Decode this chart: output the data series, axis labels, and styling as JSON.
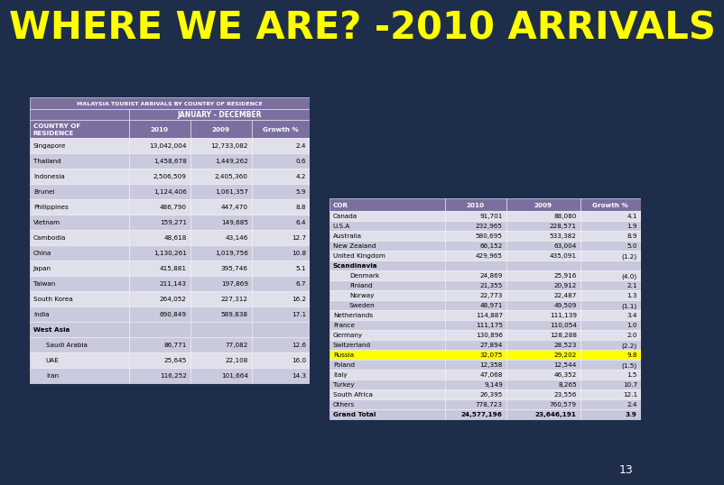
{
  "title": "WHERE WE ARE? -2010 ARRIVALS",
  "title_color": "#FFFF00",
  "bg_color": "#1e2d4a",
  "slide_number": "13",
  "table1_header_title": "MALAYSIA TOURIST ARRIVALS BY COUNTRY OF RESIDENCE",
  "table1_col_headers": [
    "COUNTRY OF\nRESIDENCE",
    "2010",
    "2009",
    "Growth %"
  ],
  "table1_subheader": "JANUARY - DECEMBER",
  "table1_rows": [
    [
      "Singapore",
      "13,042,004",
      "12,733,082",
      "2.4"
    ],
    [
      "Thailand",
      "1,458,678",
      "1,449,262",
      "0.6"
    ],
    [
      "Indonesia",
      "2,506,509",
      "2,405,360",
      "4.2"
    ],
    [
      "Brunei",
      "1,124,406",
      "1,061,357",
      "5.9"
    ],
    [
      "Philippines",
      "486,790",
      "447,470",
      "8.8"
    ],
    [
      "Vietnam",
      "159,271",
      "149,685",
      "6.4"
    ],
    [
      "Cambodia",
      "48,618",
      "43,146",
      "12.7"
    ],
    [
      "China",
      "1,130,261",
      "1,019,756",
      "10.8"
    ],
    [
      "Japan",
      "415,881",
      "395,746",
      "5.1"
    ],
    [
      "Taiwan",
      "211,143",
      "197,869",
      "6.7"
    ],
    [
      "South Korea",
      "264,052",
      "227,312",
      "16.2"
    ],
    [
      "India",
      "690,849",
      "589,838",
      "17.1"
    ],
    [
      "West Asia",
      "",
      "",
      ""
    ],
    [
      "Saudi Arabia",
      "86,771",
      "77,082",
      "12.6"
    ],
    [
      "UAE",
      "25,645",
      "22,108",
      "16.0"
    ],
    [
      "Iran",
      "116,252",
      "101,664",
      "14.3"
    ]
  ],
  "table1_indent_rows": [
    13,
    14,
    15
  ],
  "table2_col_headers": [
    "COR",
    "2010",
    "2009",
    "Growth %"
  ],
  "table2_rows": [
    [
      "Canada",
      "91,701",
      "88,080",
      "4.1",
      false
    ],
    [
      "U.S.A",
      "232,965",
      "228,571",
      "1.9",
      false
    ],
    [
      "Australia",
      "580,695",
      "533,382",
      "8.9",
      false
    ],
    [
      "New Zealand",
      "66,152",
      "63,004",
      "5.0",
      false
    ],
    [
      "United Kingdom",
      "429,965",
      "435,091",
      "(1.2)",
      false
    ],
    [
      "Scandinavia",
      "",
      "",
      "",
      false
    ],
    [
      "Denmark",
      "24,869",
      "25,916",
      "(4.0)",
      false
    ],
    [
      "Finland",
      "21,355",
      "20,912",
      "2.1",
      false
    ],
    [
      "Norway",
      "22,773",
      "22,487",
      "1.3",
      false
    ],
    [
      "Sweden",
      "48,971",
      "49,509",
      "(1.1)",
      false
    ],
    [
      "Netherlands",
      "114,887",
      "111,139",
      "3.4",
      false
    ],
    [
      "France",
      "111,175",
      "110,054",
      "1.0",
      false
    ],
    [
      "Germany",
      "130,896",
      "128,288",
      "2.0",
      false
    ],
    [
      "Switzerland",
      "27,894",
      "28,523",
      "(2.2)",
      false
    ],
    [
      "Russia",
      "32,075",
      "29,202",
      "9.8",
      true
    ],
    [
      "Poland",
      "12,358",
      "12,544",
      "(1.5)",
      false
    ],
    [
      "Italy",
      "47,068",
      "46,352",
      "1.5",
      false
    ],
    [
      "Turkey",
      "9,149",
      "8,265",
      "10.7",
      false
    ],
    [
      "South Africa",
      "26,395",
      "23,556",
      "12.1",
      false
    ],
    [
      "Others",
      "778,723",
      "760,579",
      "2.4",
      false
    ],
    [
      "Grand Total",
      "24,577,196",
      "23,646,191",
      "3.9",
      false
    ]
  ],
  "table2_indent_rows": [
    6,
    7,
    8,
    9
  ],
  "header_bg": "#7b6fa0",
  "header_fg": "#ffffff",
  "row_alt1": "#e0e0ec",
  "row_alt2": "#cacade",
  "highlight_yellow": "#ffff00",
  "west_asia_bg": "#c8c8dc",
  "grand_total_bg": "#c8c8dc"
}
